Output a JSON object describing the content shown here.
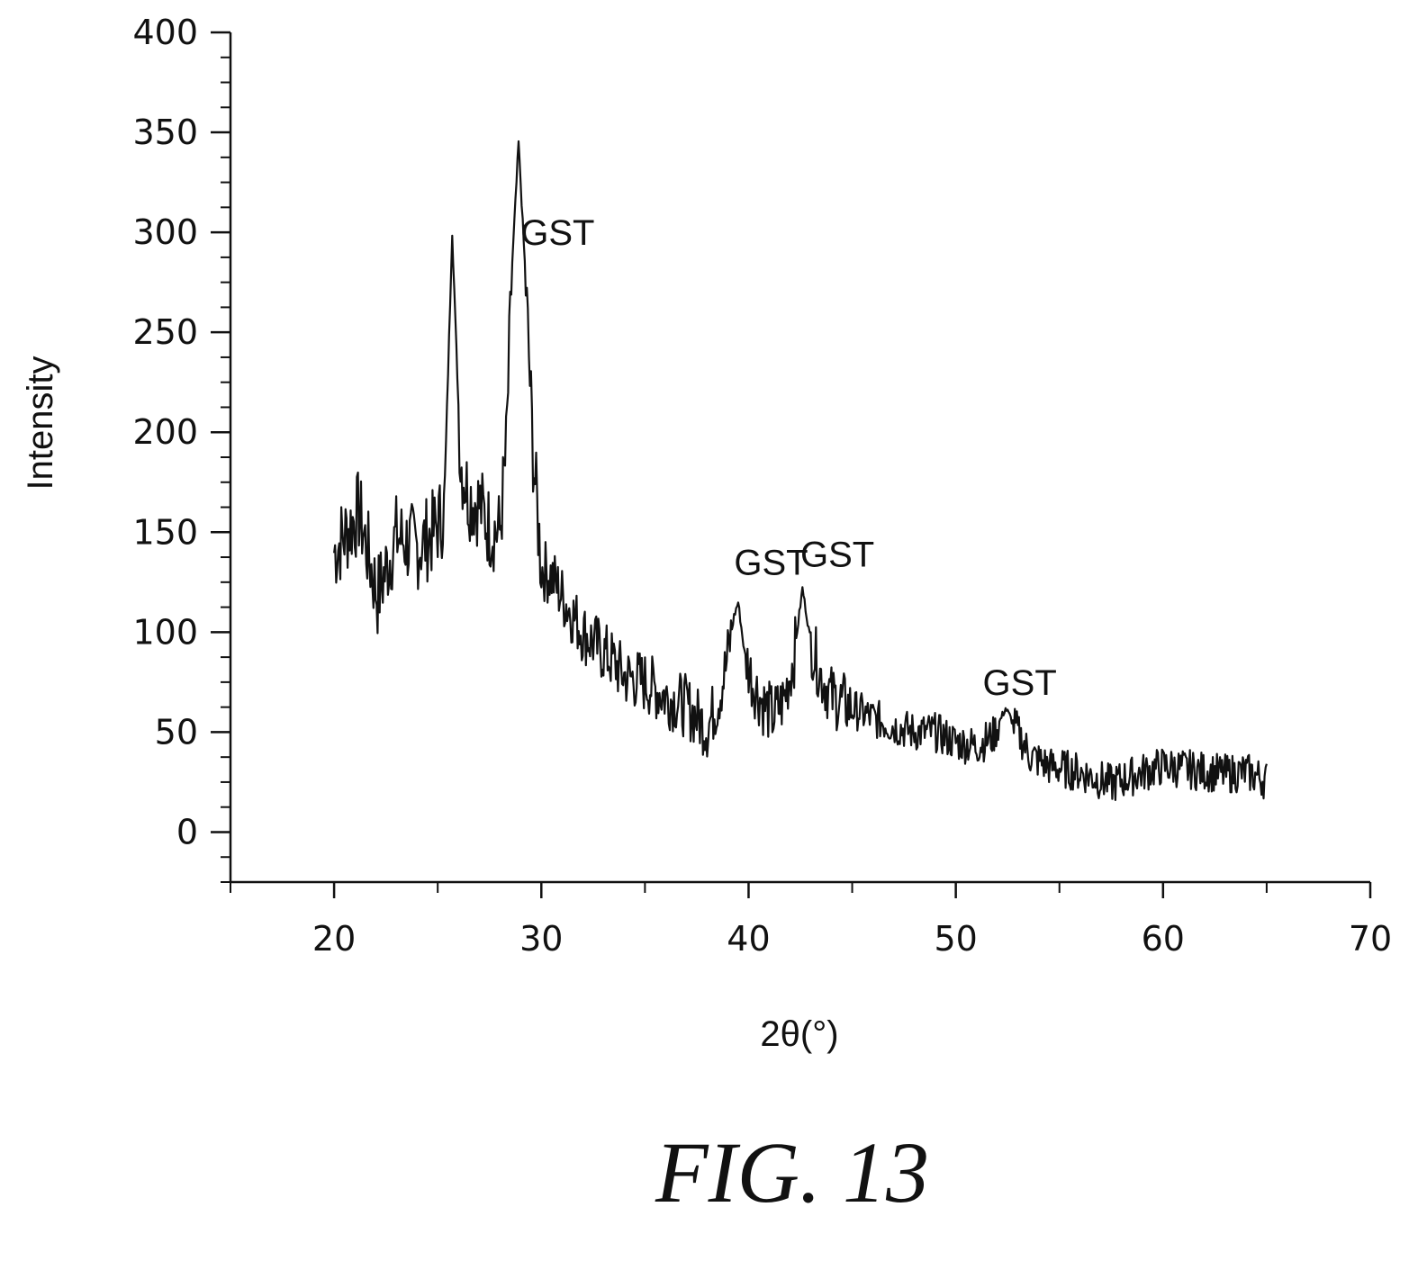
{
  "chart_data": {
    "type": "line",
    "title": "",
    "xlabel": "2θ(°)",
    "ylabel": "Intensity",
    "xlim": [
      15,
      70
    ],
    "ylim": [
      -25,
      400
    ],
    "xticks": [
      20,
      30,
      40,
      50,
      60,
      70
    ],
    "yticks": [
      0,
      50,
      100,
      150,
      200,
      250,
      300,
      350,
      400
    ],
    "grid": false,
    "line_color": "#111111",
    "series": [
      {
        "x": [
          20,
          21.2,
          22.1,
          23,
          24,
          24.8,
          25.3,
          25.7,
          26.1,
          26.5,
          27,
          27.5,
          28,
          28.3,
          28.6,
          28.9,
          29.2,
          29.6,
          30,
          30.5,
          31,
          32,
          33,
          33.5,
          34,
          35,
          36,
          37,
          38,
          38.5,
          38.9,
          39.3,
          39.5,
          39.8,
          40.2,
          40.7,
          41.2,
          41.7,
          42.2,
          42.6,
          43,
          43.5,
          44,
          45,
          46,
          47,
          48,
          49,
          50,
          51,
          51.8,
          52.4,
          53,
          53.6,
          54.5,
          56,
          57.5,
          58.5,
          60,
          61.5,
          63,
          64,
          65
        ],
        "y": [
          140,
          160,
          118,
          148,
          142,
          150,
          160,
          300,
          185,
          168,
          164,
          152,
          150,
          190,
          285,
          345,
          285,
          190,
          132,
          128,
          118,
          100,
          90,
          85,
          78,
          75,
          68,
          63,
          52,
          65,
          82,
          108,
          115,
          90,
          75,
          64,
          58,
          66,
          88,
          122,
          95,
          78,
          68,
          62,
          57,
          53,
          50,
          50,
          45,
          43,
          48,
          62,
          50,
          38,
          33,
          30,
          24,
          28,
          33,
          31,
          29,
          30,
          26
        ]
      }
    ],
    "annotations": [
      {
        "text": "GST",
        "x": 29.0,
        "y": 300
      },
      {
        "text": "GST",
        "x": 39.3,
        "y": 135
      },
      {
        "text": "GST",
        "x": 42.5,
        "y": 139
      },
      {
        "text": "GST",
        "x": 51.3,
        "y": 75
      }
    ]
  },
  "figure": {
    "caption": "FIG. 13"
  }
}
